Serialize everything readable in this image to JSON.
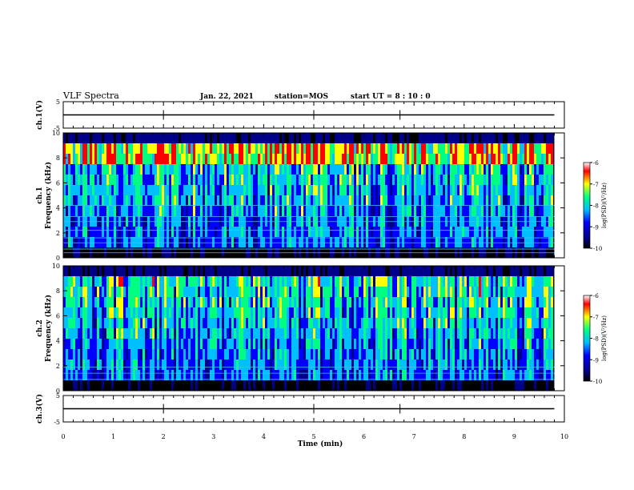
{
  "header": {
    "title": "VLF Spectra",
    "date": "Jan. 22, 2021",
    "station": "station=MOS",
    "start": "start UT =  8 : 10 : 0"
  },
  "chart_data": [
    {
      "type": "line",
      "name": "waveform-ch1",
      "ylabel": "ch.1(V)",
      "ylim": [
        -5,
        5
      ],
      "yticks": [
        "5",
        "-5"
      ],
      "x": [
        0,
        9.8
      ],
      "values": [
        0,
        0
      ]
    },
    {
      "type": "heatmap",
      "name": "spectrogram-ch1",
      "ylabel": "ch.1\nFrequency (kHz)",
      "ylabel_lines": [
        "ch.1",
        "Frequency (kHz)"
      ],
      "yticks": [
        "0",
        "2",
        "4",
        "6",
        "8",
        "10"
      ],
      "ylim": [
        0,
        10
      ],
      "colorbar": {
        "label": "log(PSD)(V²/Hz)",
        "ticks": [
          "-6",
          "-7",
          "-8",
          "-9",
          "-10"
        ],
        "range": [
          -10,
          -6
        ]
      }
    },
    {
      "type": "heatmap",
      "name": "spectrogram-ch2",
      "ylabel": "ch.2\nFrequency (kHz)",
      "ylabel_lines": [
        "ch.2",
        "Frequency (kHz)"
      ],
      "yticks": [
        "0",
        "2",
        "4",
        "6",
        "8",
        "10"
      ],
      "ylim": [
        0,
        10
      ],
      "colorbar": {
        "label": "log(PSD)(V²/Hz)",
        "ticks": [
          "-6",
          "-7",
          "-8",
          "-9",
          "-10"
        ],
        "range": [
          -10,
          -6
        ]
      }
    },
    {
      "type": "line",
      "name": "waveform-ch3",
      "ylabel": "ch.3(V)",
      "ylim": [
        -5,
        5
      ],
      "yticks": [
        "5",
        "-5"
      ],
      "x": [
        0,
        9.8
      ],
      "values": [
        0,
        0
      ]
    }
  ],
  "xaxis": {
    "label": "Time (min)",
    "ticks": [
      "0",
      "1",
      "2",
      "3",
      "4",
      "5",
      "6",
      "7",
      "8",
      "9",
      "10"
    ],
    "range": [
      0,
      10
    ],
    "data_end": 9.8
  },
  "colors": {
    "background": "#ffffff",
    "axis": "#000000",
    "colormap": [
      "#000000",
      "#00008b",
      "#0000ff",
      "#00bfff",
      "#00ff80",
      "#ffff00",
      "#ff0000"
    ]
  }
}
